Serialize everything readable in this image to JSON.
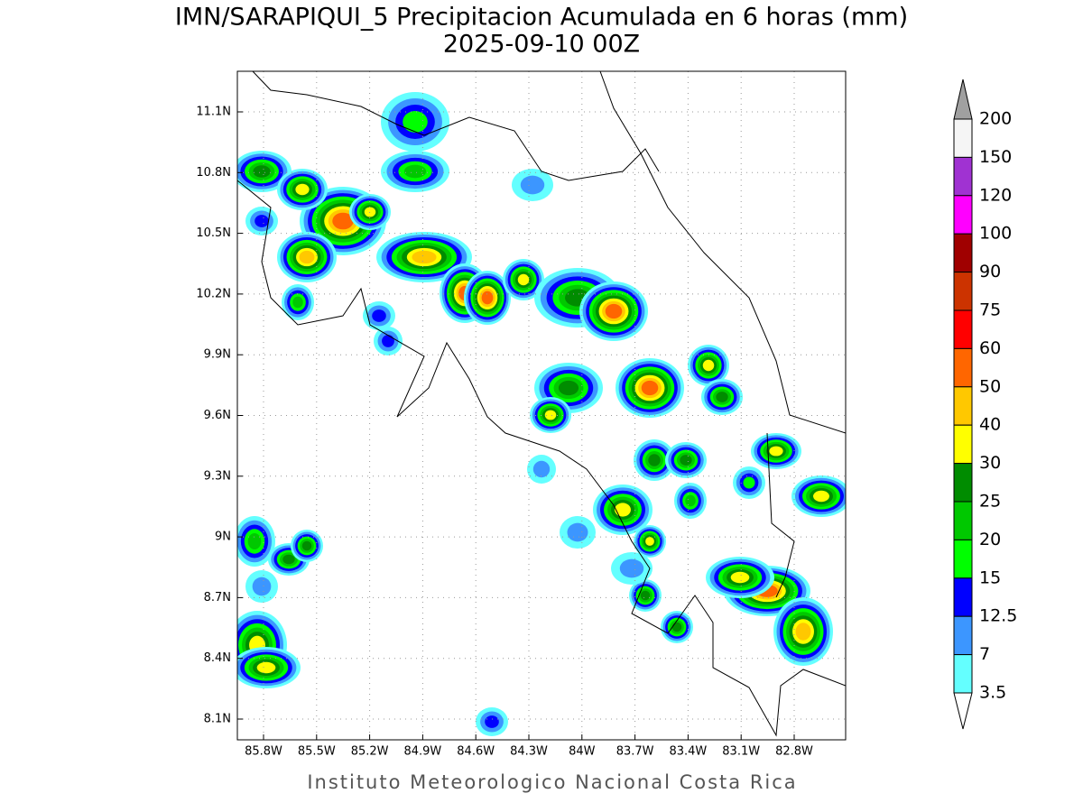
{
  "title": "IMN/SARAPIQUI_5 Precipitacion Acumulada en 6 horas (mm)",
  "subtitle": "2025-09-10 00Z",
  "footer": "Instituto Meteorologico Nacional Costa Rica",
  "map": {
    "lon_labels": [
      "85.8W",
      "85.5W",
      "85.2W",
      "84.9W",
      "84.6W",
      "84.3W",
      "84W",
      "83.7W",
      "83.4W",
      "83.1W",
      "82.8W"
    ],
    "lat_labels": [
      "11.1N",
      "10.8N",
      "10.5N",
      "10.2N",
      "9.9N",
      "9.6N",
      "9.3N",
      "9N",
      "8.7N",
      "8.4N",
      "8.1N"
    ]
  },
  "colorbar": {
    "levels": [
      200,
      150,
      120,
      100,
      90,
      75,
      60,
      50,
      40,
      30,
      25,
      20,
      15,
      12.5,
      7,
      3.5
    ],
    "colors": [
      "#f5f5f5",
      "#a032d2",
      "#ff00ff",
      "#a00000",
      "#cc3300",
      "#ff0000",
      "#ff6600",
      "#ffc800",
      "#ffff00",
      "#008c00",
      "#00c800",
      "#00ff00",
      "#0000ff",
      "#3c96ff",
      "#64ffff"
    ],
    "over_color": "#a0a0a0",
    "under_color": "#ffffff"
  }
}
